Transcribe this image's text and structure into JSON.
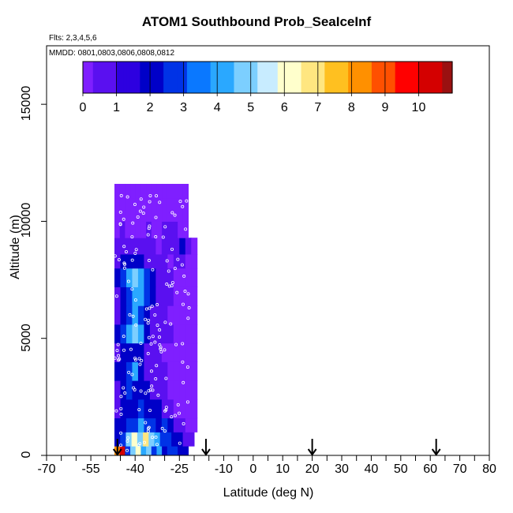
{
  "chart_data": {
    "type": "heatmap",
    "title": "ATOM1 Southbound Prob_SeaIceInf",
    "subtitle_flights": "Flts: 2,3,4,5,6",
    "subtitle_dates": "MMDD: 0801,0803,0806,0808,0812",
    "xlabel": "Latitude (deg N)",
    "ylabel": "Altitude (m)",
    "xlim": [
      -70,
      80
    ],
    "ylim": [
      0,
      17500
    ],
    "x_tick_labels": [
      "-70",
      "-55",
      "-40",
      "-25",
      "-10",
      "0",
      "10",
      "20",
      "30",
      "40",
      "50",
      "60",
      "70",
      "80"
    ],
    "x_tick_values": [
      -70,
      -55,
      -40,
      -25,
      -10,
      0,
      10,
      20,
      30,
      40,
      50,
      60,
      70,
      80
    ],
    "y_tick_labels": [
      "0",
      "5000",
      "10000",
      "15000"
    ],
    "y_tick_values": [
      0,
      5000,
      10000,
      15000
    ],
    "colorbar": {
      "range": [
        0,
        11
      ],
      "tick_labels": [
        "0",
        "1",
        "2",
        "3",
        "4",
        "5",
        "6",
        "7",
        "8",
        "9",
        "10"
      ],
      "colors": [
        "#7f1fff",
        "#5a10f0",
        "#2d00e0",
        "#0000c8",
        "#0033e6",
        "#0a78ff",
        "#2aa8ff",
        "#7ccfff",
        "#c8ecff",
        "#ffffcc",
        "#ffe680",
        "#ffc020",
        "#ff9000",
        "#ff5000",
        "#ff0000",
        "#d40000",
        "#9a1010"
      ]
    },
    "heatmap_rows": [
      {
        "alt_bottom": 0,
        "alt_top": 400,
        "lat_start": -47,
        "lat_end": -22,
        "values": [
          8,
          10,
          3,
          5,
          6,
          4,
          5,
          3,
          4,
          2,
          3,
          3,
          2,
          2
        ]
      },
      {
        "alt_bottom": 400,
        "alt_top": 1000,
        "lat_start": -47,
        "lat_end": -20,
        "values": [
          2,
          3,
          5,
          6,
          5,
          7,
          5,
          4,
          3,
          3,
          2,
          2,
          1,
          1
        ]
      },
      {
        "alt_bottom": 1000,
        "alt_top": 1600,
        "lat_start": -47,
        "lat_end": -19,
        "values": [
          2,
          2,
          3,
          3,
          4,
          3,
          3,
          2,
          3,
          2,
          1,
          1,
          0,
          0
        ]
      },
      {
        "alt_bottom": 1600,
        "alt_top": 2400,
        "lat_start": -47,
        "lat_end": -19,
        "values": [
          1,
          2,
          2,
          2,
          3,
          2,
          2,
          2,
          1,
          1,
          0,
          0,
          0,
          0
        ]
      },
      {
        "alt_bottom": 2400,
        "alt_top": 3200,
        "lat_start": -47,
        "lat_end": -19,
        "values": [
          1,
          2,
          3,
          2,
          2,
          2,
          1,
          1,
          1,
          0,
          0,
          0,
          0,
          0
        ]
      },
      {
        "alt_bottom": 3200,
        "alt_top": 4000,
        "lat_start": -47,
        "lat_end": -19,
        "values": [
          2,
          2,
          3,
          4,
          2,
          1,
          1,
          1,
          1,
          0,
          0,
          0,
          0,
          0
        ]
      },
      {
        "alt_bottom": 4000,
        "alt_top": 4800,
        "lat_start": -47,
        "lat_end": -19,
        "values": [
          1,
          2,
          2,
          2,
          2,
          1,
          1,
          1,
          0,
          0,
          0,
          0,
          0,
          0
        ]
      },
      {
        "alt_bottom": 4800,
        "alt_top": 5600,
        "lat_start": -47,
        "lat_end": -19,
        "values": [
          2,
          3,
          4,
          5,
          4,
          2,
          1,
          1,
          1,
          1,
          0,
          0,
          0,
          0
        ]
      },
      {
        "alt_bottom": 5600,
        "alt_top": 6400,
        "lat_start": -47,
        "lat_end": -19,
        "values": [
          1,
          2,
          3,
          4,
          3,
          2,
          1,
          1,
          1,
          0,
          0,
          0,
          0,
          0
        ]
      },
      {
        "alt_bottom": 6400,
        "alt_top": 7200,
        "lat_start": -47,
        "lat_end": -19,
        "values": [
          1,
          2,
          3,
          4,
          4,
          3,
          2,
          1,
          1,
          1,
          0,
          0,
          0,
          0
        ]
      },
      {
        "alt_bottom": 7200,
        "alt_top": 8000,
        "lat_start": -47,
        "lat_end": -19,
        "values": [
          2,
          3,
          4,
          5,
          4,
          3,
          2,
          1,
          1,
          1,
          0,
          0,
          0,
          0
        ]
      },
      {
        "alt_bottom": 8000,
        "alt_top": 8600,
        "lat_start": -47,
        "lat_end": -19,
        "values": [
          1,
          2,
          2,
          2,
          2,
          1,
          1,
          1,
          1,
          0,
          1,
          1,
          0,
          0
        ]
      },
      {
        "alt_bottom": 8600,
        "alt_top": 9300,
        "lat_start": -47,
        "lat_end": -19,
        "values": [
          1,
          1,
          1,
          1,
          1,
          1,
          1,
          0,
          1,
          1,
          1,
          2,
          1,
          0
        ]
      },
      {
        "alt_bottom": 9300,
        "alt_top": 10000,
        "lat_start": -47,
        "lat_end": -22,
        "values": [
          0,
          1,
          0,
          0,
          0,
          0,
          1,
          0,
          0,
          1,
          1,
          1,
          0,
          0
        ]
      },
      {
        "alt_bottom": 10000,
        "alt_top": 11000,
        "lat_start": -47,
        "lat_end": -22,
        "values": [
          0,
          0,
          0,
          0,
          0,
          0,
          0,
          0,
          0,
          0,
          0,
          0,
          0,
          0
        ]
      },
      {
        "alt_bottom": 11000,
        "alt_top": 11600,
        "lat_start": -47,
        "lat_end": -22,
        "values": [
          0,
          0,
          0,
          0,
          0,
          0,
          0,
          0,
          0,
          0,
          0,
          0,
          0,
          0
        ]
      }
    ],
    "arrow_markers_lat": [
      -46,
      -16,
      20,
      62
    ]
  }
}
